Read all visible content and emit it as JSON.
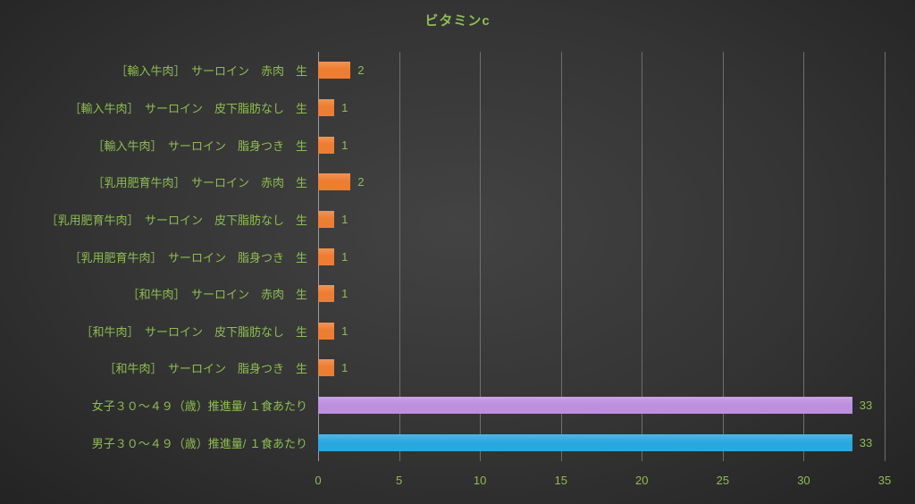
{
  "page": {
    "background_center": "#434343",
    "background_edge": "#232323"
  },
  "chart_data": {
    "type": "bar",
    "orientation": "horizontal",
    "title": "ビタミンc",
    "title_color": "#8CBF4F",
    "text_color": "#8CBF4F",
    "gridline_color": "#6f6f6f",
    "grid": true,
    "legend": "none",
    "categories": [
      "［輸入牛肉］　サーロイン　赤肉　生",
      "［輸入牛肉］　サーロイン　皮下脂肪なし　生",
      "［輸入牛肉］　サーロイン　脂身つき　生",
      "［乳用肥育牛肉］　サーロイン　赤肉　生",
      "［乳用肥育牛肉］　サーロイン　皮下脂肪なし　生",
      "［乳用肥育牛肉］　サーロイン　脂身つき　生",
      "［和牛肉］　サーロイン　赤肉　生",
      "［和牛肉］　サーロイン　皮下脂肪なし　生",
      "［和牛肉］　サーロイン　脂身つき　生",
      "女子３０～４９（歳）推進量/ １食あたり",
      "男子３０～４９（歳）推進量/ １食あたり"
    ],
    "values": [
      2,
      1,
      1,
      2,
      1,
      1,
      1,
      1,
      1,
      33,
      33
    ],
    "data_labels": [
      "2",
      "1",
      "1",
      "2",
      "1",
      "1",
      "1",
      "1",
      "1",
      "33",
      "33"
    ],
    "bar_colors": [
      "#ED7D31",
      "#ED7D31",
      "#ED7D31",
      "#ED7D31",
      "#ED7D31",
      "#ED7D31",
      "#ED7D31",
      "#ED7D31",
      "#ED7D31",
      "#BE8FE0",
      "#29A8DF"
    ],
    "xlim": [
      0,
      35
    ],
    "xticks": [
      0,
      5,
      10,
      15,
      20,
      25,
      30,
      35
    ]
  }
}
